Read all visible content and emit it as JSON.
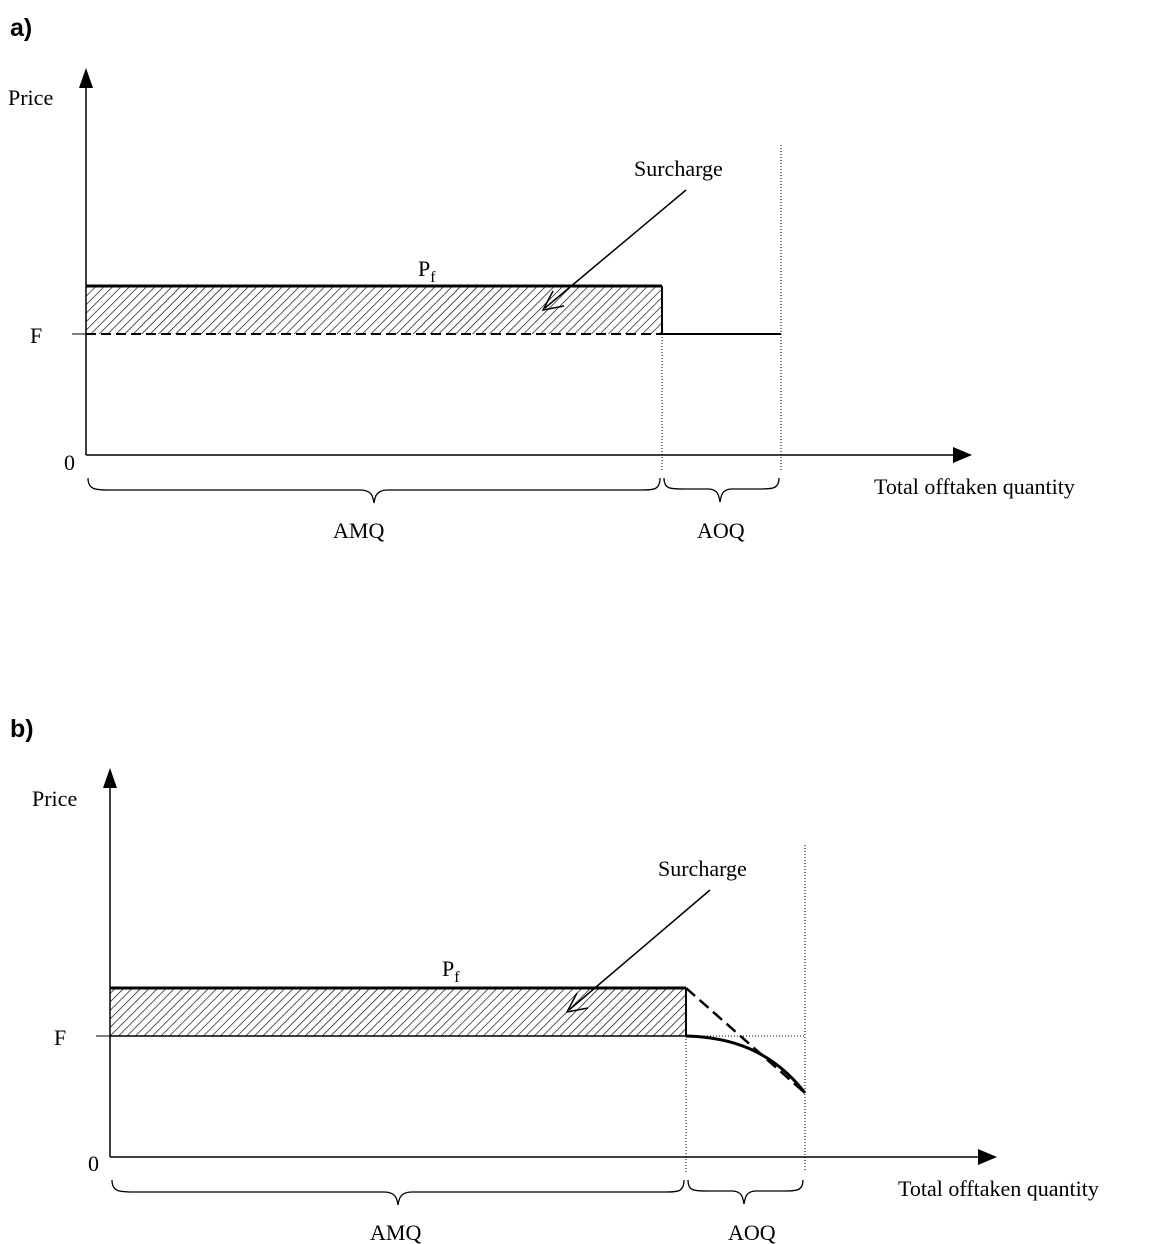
{
  "panels": [
    {
      "letter": "a)",
      "y_axis_label": "Price",
      "origin_label": "0",
      "f_label": "F",
      "pf_label": "P",
      "pf_subscript": "f",
      "surcharge_label": "Surcharge",
      "x_axis_label": "Total offtaken quantity",
      "amq_label": "AMQ",
      "aoq_label": "AOQ"
    },
    {
      "letter": "b)",
      "y_axis_label": "Price",
      "origin_label": "0",
      "f_label": "F",
      "pf_label": "P",
      "pf_subscript": "f",
      "surcharge_label": "Surcharge",
      "x_axis_label": "Total offtaken quantity",
      "amq_label": "AMQ",
      "aoq_label": "AOQ"
    }
  ]
}
